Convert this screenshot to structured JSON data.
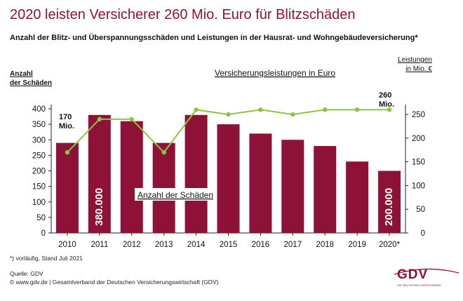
{
  "header": {
    "title": "2020 leisten Versicherer 260 Mio. Euro für Blitzschäden",
    "subtitle": "Anzahl der Blitz- und Überspannungsschäden und Leistungen in der Hausrat- und Wohngebäudeversicherung*"
  },
  "footer": {
    "footnote": "*) vorläufig, Stand Juli 2021",
    "source_line": "Quelle: GDV",
    "web_line": "© www.gdv.de | Gesamtverband der Deutschen Versicherungswirtschaft (GDV)"
  },
  "logo": {
    "text": "GDV",
    "subtext": "DIE DEUTSCHEN VERSICHERER"
  },
  "colors": {
    "bar": "#8e1238",
    "line": "#8cc63f",
    "axis": "#222222",
    "title": "#8e1238"
  },
  "chart_data": {
    "type": "bar+line",
    "categories": [
      "2010",
      "2011",
      "2012",
      "2013",
      "2014",
      "2015",
      "2016",
      "2017",
      "2018",
      "2019",
      "2020*"
    ],
    "series": [
      {
        "name": "Anzahl der Schäden",
        "type": "bar",
        "axis": "left",
        "values": [
          290,
          380,
          360,
          290,
          380,
          350,
          320,
          300,
          280,
          230,
          200
        ]
      },
      {
        "name": "Versicherungsleistungen in Euro",
        "type": "line",
        "axis": "right",
        "values": [
          170,
          240,
          240,
          170,
          260,
          250,
          260,
          250,
          260,
          260,
          260
        ]
      }
    ],
    "left_axis": {
      "label_line1": "Anzahl",
      "label_line2": "der Schäden",
      "range": [
        0,
        400
      ],
      "ticks": [
        "0",
        "50",
        "100",
        "150",
        "200",
        "250",
        "300",
        "350",
        "400"
      ]
    },
    "right_axis": {
      "label_line1": "Leistungen",
      "label_line2": "in Mio. €",
      "range": [
        0,
        262
      ],
      "ticks": [
        "0",
        "50",
        "100",
        "150",
        "200",
        "250"
      ],
      "tick_values": [
        0,
        50,
        100,
        150,
        200,
        250
      ]
    },
    "annotations": {
      "bar_2011": "380.000",
      "bar_2020": "200.000",
      "line_2010_l1": "170",
      "line_2010_l2": "Mio.",
      "line_2020_l1": "260",
      "line_2020_l2": "Mio.",
      "line_series_label": "Versicherungsleistungen in Euro",
      "bar_series_label": "Anzahl der Schäden"
    },
    "grid": false
  }
}
